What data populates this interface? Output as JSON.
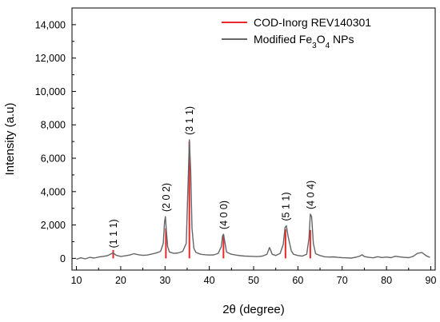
{
  "chart_data": {
    "type": "line",
    "xlabel": "2θ (degree)",
    "ylabel": "Intensity (a.u)",
    "xlim": [
      9,
      91
    ],
    "ylim": [
      -700,
      15000
    ],
    "xticks": [
      10,
      20,
      30,
      40,
      50,
      60,
      70,
      80,
      90
    ],
    "yticks": [
      0,
      2000,
      4000,
      6000,
      8000,
      10000,
      12000,
      14000
    ],
    "ytick_labels": [
      "0",
      "2,000",
      "4,000",
      "6,000",
      "8,000",
      "10,000",
      "12,000",
      "14,000"
    ],
    "legend_position": "top-right",
    "legend": [
      {
        "label": "COD-Inorg REV140301",
        "color": "#e8282b"
      },
      {
        "label": "Modified Fe3O4 NPs",
        "color": "#666666",
        "label_parts": [
          {
            "t": "Modified Fe",
            "sub": false
          },
          {
            "t": "3",
            "sub": true
          },
          {
            "t": "O",
            "sub": false
          },
          {
            "t": "4",
            "sub": true
          },
          {
            "t": " NPs",
            "sub": false
          }
        ]
      }
    ],
    "series": [
      {
        "name": "Modified Fe3O4 NPs",
        "color": "#666666",
        "x": [
          10.0,
          11.0,
          12.0,
          13.0,
          14.0,
          15.0,
          16.0,
          17.0,
          17.6,
          18.0,
          18.3,
          18.6,
          19.0,
          20.0,
          21.0,
          22.0,
          23.0,
          24.0,
          25.0,
          26.0,
          27.0,
          28.0,
          29.0,
          29.6,
          29.9,
          30.1,
          30.3,
          30.6,
          31.0,
          32.0,
          33.0,
          34.0,
          34.8,
          35.2,
          35.5,
          35.8,
          36.1,
          36.5,
          37.0,
          38.0,
          39.0,
          40.0,
          41.0,
          42.0,
          42.7,
          43.0,
          43.2,
          43.5,
          43.9,
          44.5,
          45.0,
          46.0,
          47.0,
          48.0,
          49.0,
          50.0,
          51.0,
          52.0,
          53.0,
          53.6,
          54.2,
          55.0,
          56.0,
          56.7,
          57.1,
          57.4,
          57.8,
          58.5,
          59.0,
          60.0,
          61.0,
          62.0,
          62.5,
          62.8,
          63.1,
          63.5,
          64.0,
          65.0,
          66.0,
          67.0,
          68.0,
          69.0,
          70.0,
          71.0,
          72.0,
          73.0,
          74.0,
          74.5,
          75.0,
          76.0,
          77.0,
          78.0,
          79.0,
          80.0,
          81.0,
          82.0,
          83.0,
          84.0,
          85.0,
          86.0,
          87.0,
          88.0,
          89.0,
          89.8
        ],
        "y": [
          -50,
          30,
          -30,
          60,
          20,
          80,
          120,
          160,
          240,
          300,
          330,
          260,
          180,
          120,
          150,
          200,
          280,
          220,
          180,
          200,
          260,
          320,
          420,
          900,
          2200,
          2500,
          1700,
          700,
          380,
          300,
          330,
          420,
          900,
          4500,
          7100,
          5200,
          1800,
          600,
          360,
          250,
          220,
          200,
          210,
          300,
          700,
          1350,
          1450,
          1000,
          380,
          300,
          250,
          200,
          160,
          140,
          130,
          120,
          110,
          140,
          240,
          650,
          250,
          170,
          300,
          850,
          1850,
          1950,
          1300,
          450,
          250,
          170,
          140,
          250,
          1200,
          2650,
          2500,
          900,
          280,
          170,
          100,
          80,
          90,
          60,
          40,
          30,
          20,
          60,
          140,
          220,
          110,
          60,
          30,
          100,
          50,
          80,
          40,
          130,
          90,
          60,
          40,
          120,
          300,
          350,
          150,
          60
        ]
      },
      {
        "name": "COD-Inorg REV140301",
        "color": "#e8282b",
        "type": "stick",
        "x": [
          18.3,
          30.2,
          35.5,
          43.2,
          57.2,
          62.8
        ],
        "y": [
          500,
          1800,
          7000,
          1400,
          1750,
          1700
        ]
      }
    ],
    "annotations": [
      {
        "text": "(1 1 1)",
        "x": 18.3
      },
      {
        "text": "(2 0 2)",
        "x": 30.2
      },
      {
        "text": "(3 1 1)",
        "x": 35.5
      },
      {
        "text": "(4 0 0)",
        "x": 43.2
      },
      {
        "text": "(5 1 1)",
        "x": 57.2
      },
      {
        "text": "(4 0 4)",
        "x": 62.8
      }
    ]
  }
}
